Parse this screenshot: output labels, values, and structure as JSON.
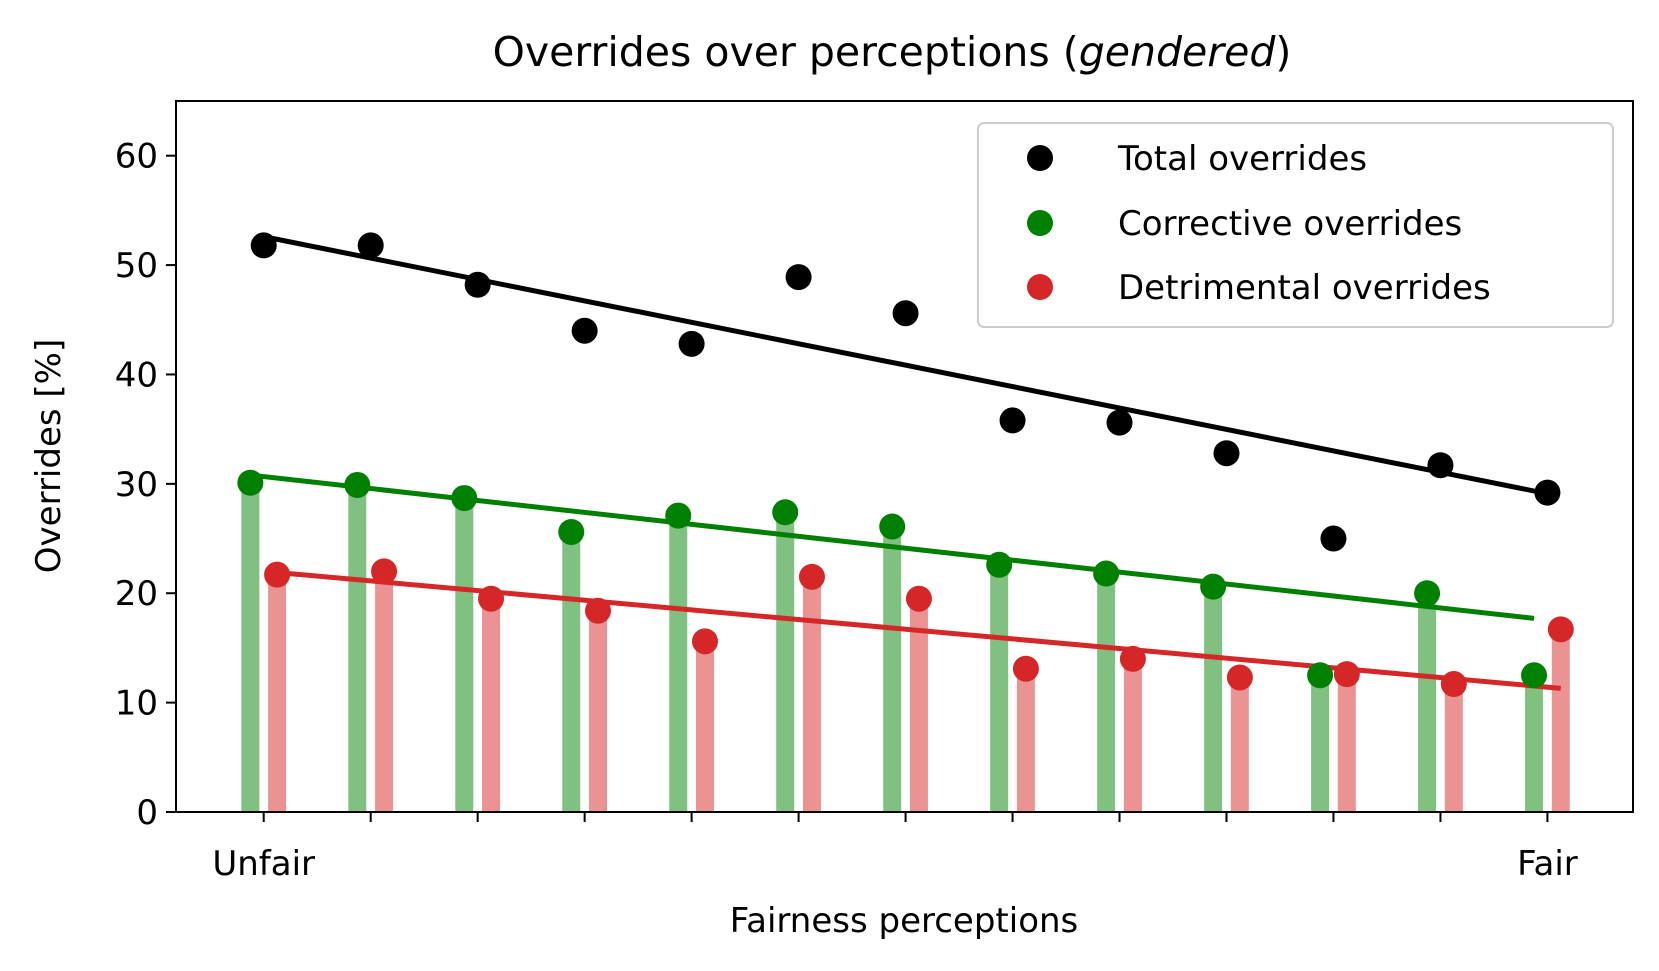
{
  "chart_data": {
    "type": "scatter",
    "title_parts": {
      "prefix": "Overrides over perceptions (",
      "italic": "gendered",
      "suffix": ")"
    },
    "xlabel": "Fairness perceptions",
    "ylabel": "Overrides [%]",
    "x": [
      1,
      2,
      3,
      4,
      5,
      6,
      7,
      8,
      9,
      10,
      11,
      12,
      13
    ],
    "xlim": [
      0.18,
      13.8
    ],
    "ylim": [
      0,
      65
    ],
    "x_tick_labels": {
      "1": "Unfair",
      "13": "Fair"
    },
    "y_ticks": [
      0,
      10,
      20,
      30,
      40,
      50,
      60
    ],
    "grid": false,
    "legend_position": "top-right",
    "series": [
      {
        "name": "Total overrides",
        "color": "#000000",
        "values": [
          51.8,
          51.8,
          48.2,
          44.0,
          42.8,
          48.9,
          45.6,
          35.8,
          35.6,
          32.8,
          25.0,
          31.7,
          29.2
        ],
        "trend": [
          52.6,
          29.1
        ]
      },
      {
        "name": "Corrective overrides",
        "color": "#008000",
        "bar_color": "#80c080",
        "values": [
          30.1,
          29.9,
          28.7,
          25.6,
          27.1,
          27.4,
          26.1,
          22.6,
          21.8,
          20.6,
          12.5,
          20.0,
          12.5
        ],
        "trend": [
          30.8,
          17.7
        ]
      },
      {
        "name": "Detrimental overrides",
        "color": "#d62728",
        "bar_color": "#eb9393",
        "values": [
          21.7,
          22.0,
          19.5,
          18.4,
          15.6,
          21.5,
          19.5,
          13.1,
          14.0,
          12.3,
          12.6,
          11.7,
          16.7
        ],
        "trend": [
          21.9,
          11.3
        ]
      }
    ]
  }
}
